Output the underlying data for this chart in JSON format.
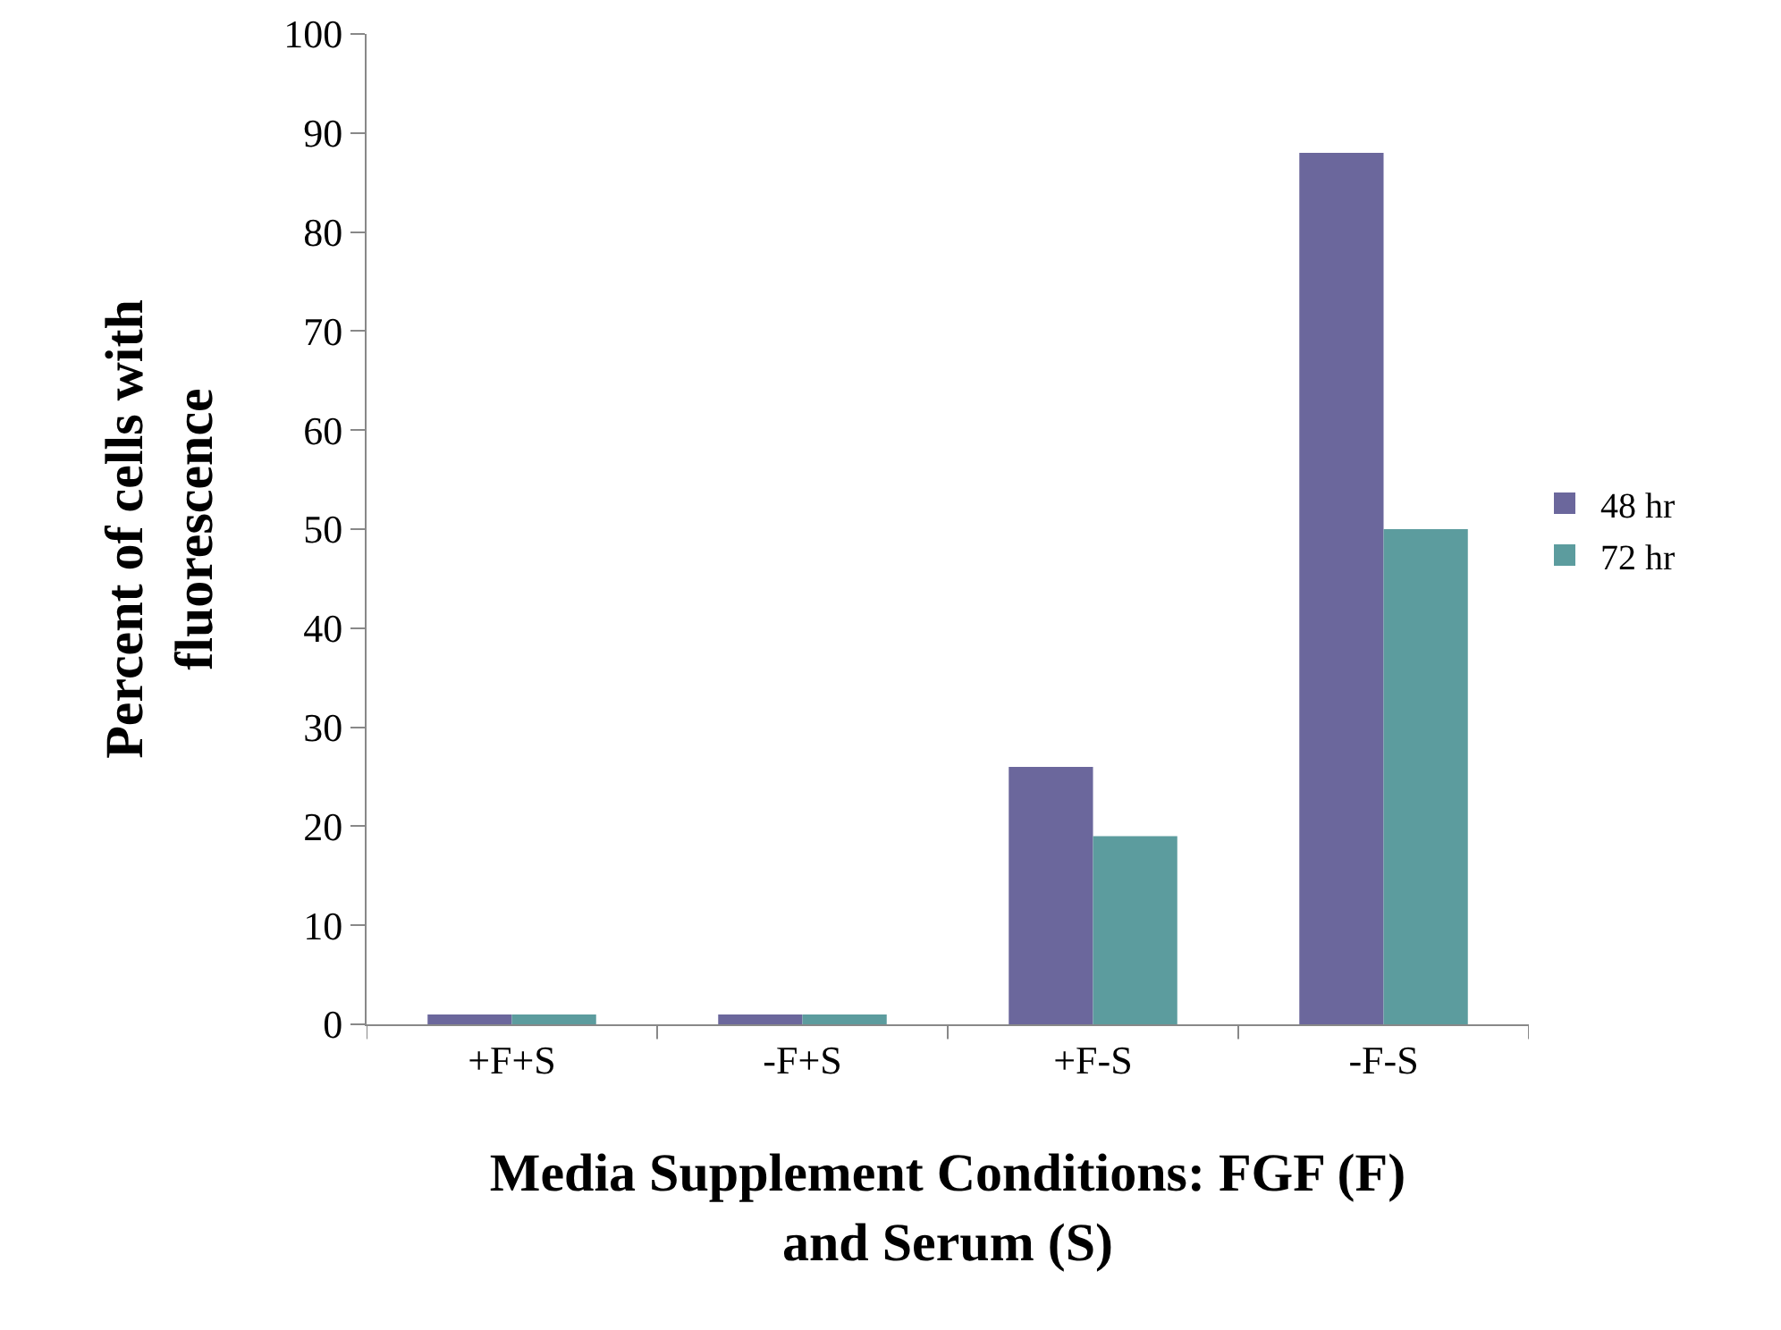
{
  "chart_data": {
    "type": "bar",
    "xlabel": "Media Supplement Conditions: FGF (F) and Serum (S)",
    "ylabel": "Percent of cells with fluorescence",
    "categories": [
      "+F+S",
      "-F+S",
      "+F-S",
      "-F-S"
    ],
    "series": [
      {
        "name": "48 hr",
        "color": "#6b679c",
        "values": [
          1,
          1,
          26,
          88
        ]
      },
      {
        "name": "72 hr",
        "color": "#5c9c9e",
        "values": [
          1,
          1,
          19,
          50
        ]
      }
    ],
    "ylim": [
      0,
      100
    ],
    "yticks": [
      0,
      10,
      20,
      30,
      40,
      50,
      60,
      70,
      80,
      90,
      100
    ],
    "legend": "right"
  }
}
